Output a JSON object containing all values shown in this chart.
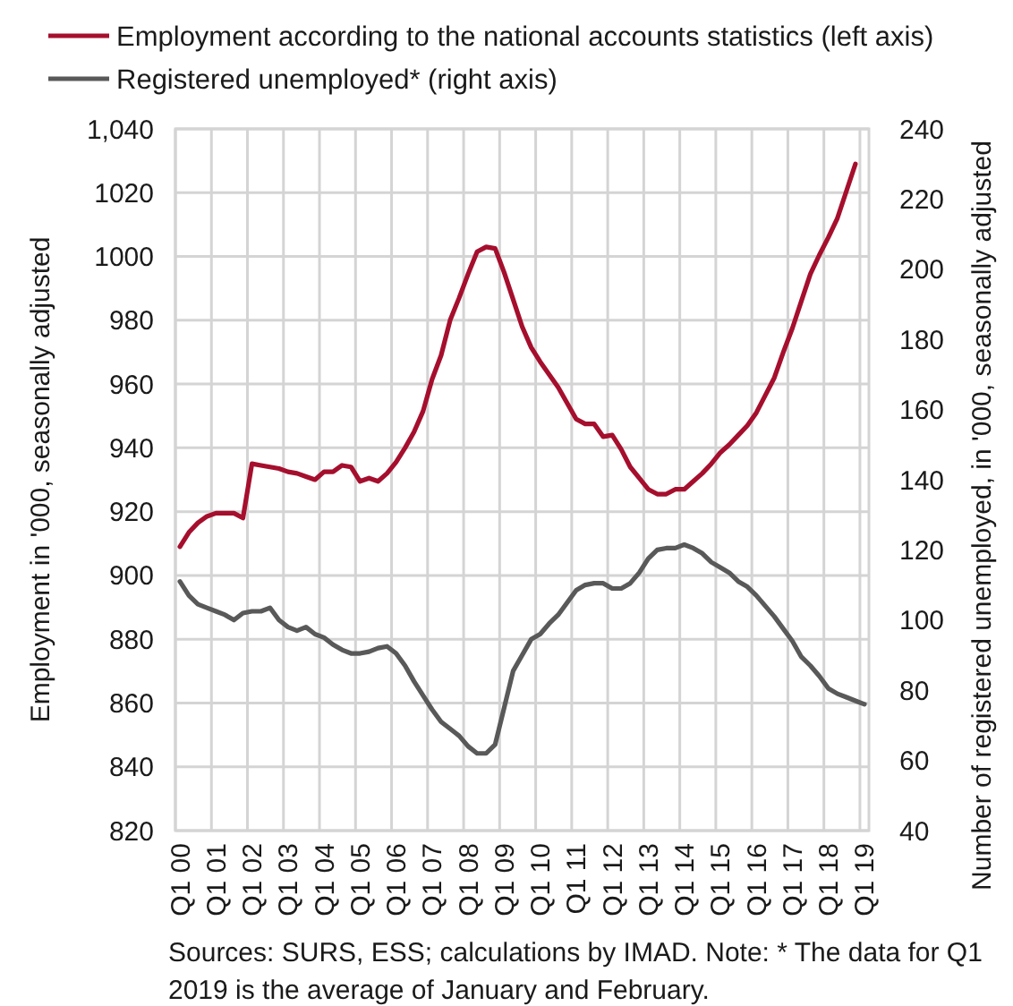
{
  "chart_data": {
    "type": "line",
    "categories": [
      "Q1 00",
      null,
      null,
      null,
      "Q1 01",
      null,
      null,
      null,
      "Q1 02",
      null,
      null,
      null,
      "Q1 03",
      null,
      null,
      null,
      "Q1 04",
      null,
      null,
      null,
      "Q1 05",
      null,
      null,
      null,
      "Q1 06",
      null,
      null,
      null,
      "Q1 07",
      null,
      null,
      null,
      "Q1 08",
      null,
      null,
      null,
      "Q1 09",
      null,
      null,
      null,
      "Q1 10",
      null,
      null,
      null,
      "Q1 11",
      null,
      null,
      null,
      "Q1 12",
      null,
      null,
      null,
      "Q1 13",
      null,
      null,
      null,
      "Q1 14",
      null,
      null,
      null,
      "Q1 15",
      null,
      null,
      null,
      "Q1 16",
      null,
      null,
      null,
      "Q1 17",
      null,
      null,
      null,
      "Q1 18",
      null,
      null,
      null,
      "Q1 19"
    ],
    "series": [
      {
        "name": "Employment according to the national accounts statistics (left axis)",
        "color": "#a50f2d",
        "values": [
          909,
          913.5,
          916.5,
          918.5,
          919.5,
          919.5,
          919.5,
          918,
          935,
          934.5,
          934,
          933.5,
          932.5,
          932,
          931,
          930,
          932.5,
          932.5,
          934.5,
          934,
          929.5,
          930.5,
          929.5,
          932,
          935.5,
          940,
          945,
          951.5,
          961.5,
          969,
          980,
          987,
          994.5,
          1001.5,
          1003,
          1002.5,
          995,
          986.5,
          978,
          971.5,
          967,
          963,
          959,
          954,
          949,
          947.5,
          947.5,
          943.5,
          944,
          939.5,
          934,
          930.5,
          927,
          925.5,
          925.5,
          927,
          927,
          929.5,
          932,
          935,
          938.5,
          941,
          944,
          947,
          951,
          956.5,
          962,
          970,
          977.5,
          986,
          994.5,
          1000.5,
          1006,
          1012,
          1020.5,
          1029,
          null
        ]
      },
      {
        "name": "Registered unemployed* (right axis)",
        "color": "#595959",
        "axis": "y2",
        "values": [
          111,
          107,
          104.5,
          103.5,
          102.5,
          101.5,
          100,
          102,
          102.5,
          102.5,
          103.5,
          100,
          98,
          97,
          98,
          96,
          95,
          93,
          91.5,
          90.5,
          90.5,
          91,
          92,
          92.5,
          90.5,
          87,
          82.5,
          78.5,
          74.5,
          71,
          69,
          67,
          64,
          62,
          62,
          64.5,
          75,
          85.5,
          90,
          94.5,
          96,
          99,
          101.5,
          105,
          108.5,
          110,
          110.5,
          110.5,
          109,
          109,
          110.5,
          113.5,
          117.5,
          120,
          120.5,
          120.5,
          121.5,
          120.5,
          119,
          116.5,
          115,
          113.5,
          111,
          109.5,
          107,
          104,
          101,
          97.5,
          94,
          89.5,
          87,
          84,
          80.5,
          79,
          78,
          77,
          76
        ]
      }
    ],
    "ylabel": "Employment in '000, seasonally adjusted",
    "y2label": "Number of registered unemployed, in '000, seasonally adjusted",
    "ylim": [
      820,
      1040
    ],
    "yticks": [
      820,
      840,
      860,
      880,
      900,
      920,
      940,
      960,
      980,
      1000,
      1020,
      {
        "value": 1040,
        "label": "1,040"
      }
    ],
    "y2lim": [
      40,
      240
    ],
    "y2ticks": [
      40,
      60,
      80,
      100,
      120,
      140,
      160,
      180,
      200,
      220,
      240
    ],
    "grid": true,
    "legend": "top",
    "annotations": [
      "Sources: SURS, ESS; calculations by IMAD. Note: * The data for Q1 2019 is the average of January and February."
    ]
  }
}
